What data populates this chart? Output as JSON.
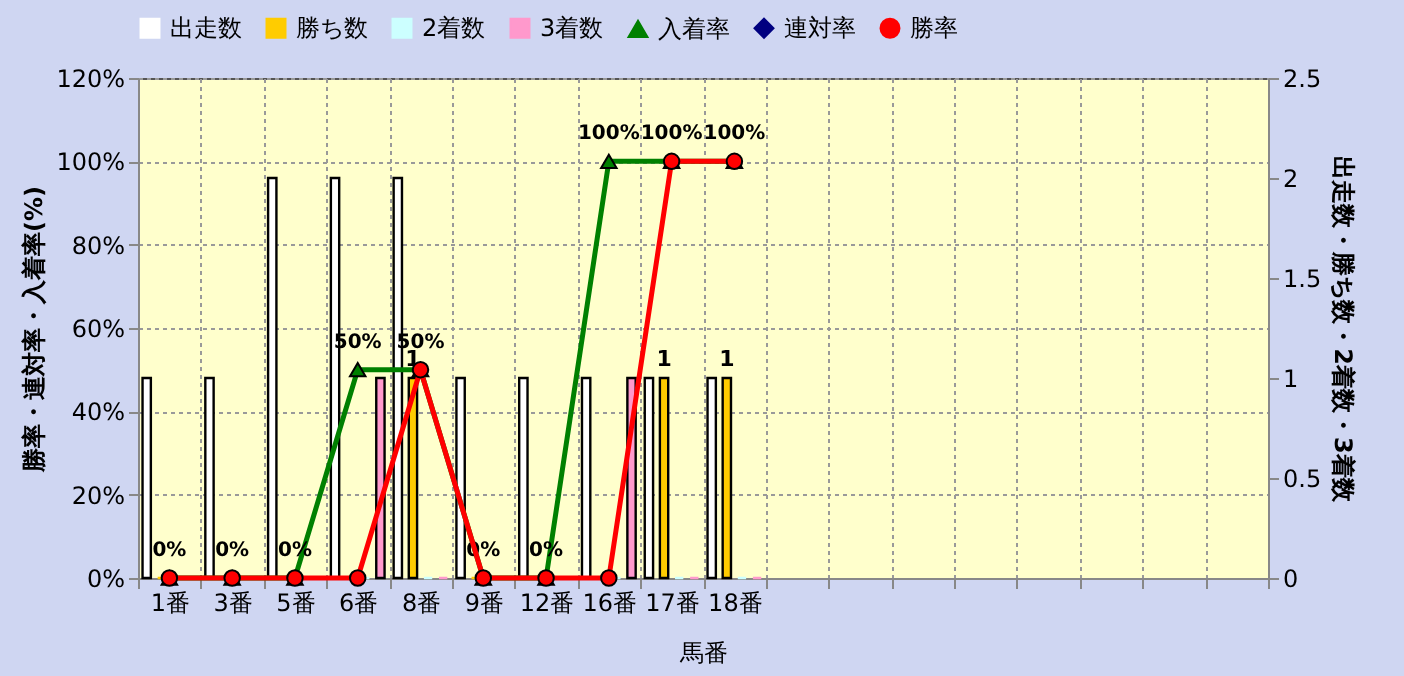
{
  "chart_data": {
    "type": "bar",
    "xlabel": "馬番",
    "ylabel": "勝率・連対率・入着率(%)",
    "y2label": "出走数・勝ち数・2着数・3着数",
    "categories": [
      "1番",
      "3番",
      "5番",
      "6番",
      "8番",
      "9番",
      "12番",
      "16番",
      "17番",
      "18番",
      null,
      null,
      null,
      null,
      null,
      null,
      null,
      null
    ],
    "series": [
      {
        "name": "出走数",
        "axis": "y2",
        "color": "#ffffff",
        "values": [
          1,
          1,
          2,
          2,
          2,
          1,
          1,
          1,
          1,
          1,
          null,
          null,
          null,
          null,
          null,
          null,
          null,
          null
        ]
      },
      {
        "name": "勝ち数",
        "axis": "y2",
        "color": "#ffcc00",
        "values": [
          0,
          0,
          0,
          0,
          1,
          0,
          0,
          0,
          1,
          1,
          null,
          null,
          null,
          null,
          null,
          null,
          null,
          null
        ],
        "value_labels": [
          null,
          null,
          null,
          null,
          "1",
          null,
          null,
          null,
          "1",
          "1",
          null,
          null,
          null,
          null,
          null,
          null,
          null,
          null
        ]
      },
      {
        "name": "2着数",
        "axis": "y2",
        "color": "#ccffff",
        "values": [
          0,
          0,
          0,
          0,
          0,
          0,
          0,
          0,
          0,
          0,
          null,
          null,
          null,
          null,
          null,
          null,
          null,
          null
        ]
      },
      {
        "name": "3着数",
        "axis": "y2",
        "color": "#ff99cc",
        "values": [
          0,
          0,
          0,
          1,
          0,
          0,
          0,
          1,
          0,
          0,
          null,
          null,
          null,
          null,
          null,
          null,
          null,
          null
        ]
      },
      {
        "name": "入着率",
        "type": "line",
        "marker": "triangle",
        "color": "#008000",
        "values": [
          0,
          0,
          0,
          50,
          50,
          0,
          0,
          100,
          100,
          100,
          null,
          null,
          null,
          null,
          null,
          null,
          null,
          null
        ],
        "value_labels": [
          "0%",
          "0%",
          "0%",
          "50%",
          "50%",
          "0%",
          "0%",
          "100%",
          "100%",
          "100%",
          null,
          null,
          null,
          null,
          null,
          null,
          null,
          null
        ]
      },
      {
        "name": "連対率",
        "type": "line",
        "marker": "diamond",
        "color": "#000080",
        "values": [
          null,
          null,
          null,
          null,
          null,
          null,
          null,
          null,
          null,
          null,
          null,
          null,
          null,
          null,
          null,
          null,
          null,
          null
        ]
      },
      {
        "name": "勝率",
        "type": "line",
        "marker": "circle",
        "color": "#ff0000",
        "values": [
          0,
          0,
          0,
          0,
          50,
          0,
          0,
          0,
          100,
          100,
          null,
          null,
          null,
          null,
          null,
          null,
          null,
          null
        ]
      }
    ],
    "ylim": [
      0,
      120
    ],
    "yticks": [
      {
        "value": 0,
        "label": "0%"
      },
      {
        "value": 20,
        "label": "20%"
      },
      {
        "value": 40,
        "label": "40%"
      },
      {
        "value": 60,
        "label": "60%"
      },
      {
        "value": 80,
        "label": "80%"
      },
      {
        "value": 100,
        "label": "100%"
      },
      {
        "value": 120,
        "label": "120%"
      }
    ],
    "y2lim": [
      0,
      2.5
    ],
    "y2ticks": [
      0,
      0.5,
      1,
      1.5,
      2,
      2.5
    ],
    "grid": true,
    "legend": "top"
  }
}
